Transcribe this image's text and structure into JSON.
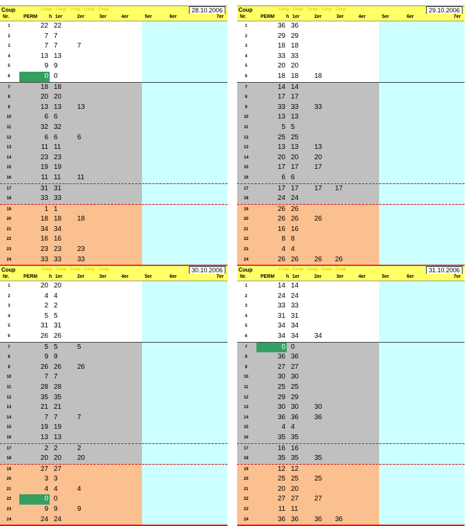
{
  "headers": {
    "coup": "Coup",
    "nr": "Nr.",
    "perm": "PERM",
    "h": "h",
    "c1": "1er",
    "c2": "2er",
    "c3": "3er",
    "c4": "4er",
    "c5": "5er",
    "c6": "6er",
    "c7": "7er"
  },
  "faint_text": "Coup · Coup · Coup · Coup · Coup",
  "panels": [
    {
      "date": "28.10.2006",
      "green_rows": [
        5
      ],
      "rows": [
        {
          "nr": "1",
          "perm": "22",
          "v": [
            "22",
            "",
            ""
          ]
        },
        {
          "nr": "2",
          "perm": "7",
          "v": [
            "7",
            "",
            ""
          ]
        },
        {
          "nr": "3",
          "perm": "7",
          "v": [
            "7",
            "7",
            ""
          ]
        },
        {
          "nr": "4",
          "perm": "13",
          "v": [
            "13",
            "",
            ""
          ]
        },
        {
          "nr": "5",
          "perm": "9",
          "v": [
            "9",
            "",
            ""
          ]
        },
        {
          "nr": "6",
          "perm": "0",
          "v": [
            "0",
            "",
            ""
          ]
        },
        {
          "nr": "7",
          "perm": "18",
          "v": [
            "18",
            "",
            ""
          ]
        },
        {
          "nr": "8",
          "perm": "20",
          "v": [
            "20",
            "",
            ""
          ]
        },
        {
          "nr": "9",
          "perm": "13",
          "v": [
            "13",
            "13",
            ""
          ]
        },
        {
          "nr": "10",
          "perm": "6",
          "v": [
            "6",
            "",
            ""
          ]
        },
        {
          "nr": "11",
          "perm": "32",
          "v": [
            "32",
            "",
            ""
          ]
        },
        {
          "nr": "12",
          "perm": "6",
          "v": [
            "6",
            "6",
            ""
          ]
        },
        {
          "nr": "13",
          "perm": "11",
          "v": [
            "11",
            "",
            ""
          ]
        },
        {
          "nr": "14",
          "perm": "23",
          "v": [
            "23",
            "",
            ""
          ]
        },
        {
          "nr": "15",
          "perm": "19",
          "v": [
            "19",
            "",
            ""
          ]
        },
        {
          "nr": "16",
          "perm": "11",
          "v": [
            "11",
            "11",
            ""
          ]
        },
        {
          "nr": "17",
          "perm": "31",
          "v": [
            "31",
            "",
            ""
          ]
        },
        {
          "nr": "18",
          "perm": "33",
          "v": [
            "33",
            "",
            ""
          ]
        },
        {
          "nr": "19",
          "perm": "1",
          "v": [
            "1",
            "",
            ""
          ]
        },
        {
          "nr": "20",
          "perm": "18",
          "v": [
            "18",
            "18",
            ""
          ]
        },
        {
          "nr": "21",
          "perm": "34",
          "v": [
            "34",
            "",
            ""
          ]
        },
        {
          "nr": "22",
          "perm": "16",
          "v": [
            "16",
            "",
            ""
          ]
        },
        {
          "nr": "23",
          "perm": "23",
          "v": [
            "23",
            "23",
            ""
          ]
        },
        {
          "nr": "24",
          "perm": "33",
          "v": [
            "33",
            "33",
            ""
          ]
        }
      ]
    },
    {
      "date": "29.10.2006",
      "green_rows": [],
      "rows": [
        {
          "nr": "1",
          "perm": "36",
          "v": [
            "36",
            "",
            ""
          ]
        },
        {
          "nr": "2",
          "perm": "29",
          "v": [
            "29",
            "",
            ""
          ]
        },
        {
          "nr": "3",
          "perm": "18",
          "v": [
            "18",
            "",
            ""
          ]
        },
        {
          "nr": "4",
          "perm": "33",
          "v": [
            "33",
            "",
            ""
          ]
        },
        {
          "nr": "5",
          "perm": "20",
          "v": [
            "20",
            "",
            ""
          ]
        },
        {
          "nr": "6",
          "perm": "18",
          "v": [
            "18",
            "18",
            ""
          ]
        },
        {
          "nr": "7",
          "perm": "14",
          "v": [
            "14",
            "",
            ""
          ]
        },
        {
          "nr": "8",
          "perm": "17",
          "v": [
            "17",
            "",
            ""
          ]
        },
        {
          "nr": "9",
          "perm": "33",
          "v": [
            "33",
            "33",
            ""
          ]
        },
        {
          "nr": "10",
          "perm": "13",
          "v": [
            "13",
            "",
            ""
          ]
        },
        {
          "nr": "11",
          "perm": "5",
          "v": [
            "5",
            "",
            ""
          ]
        },
        {
          "nr": "12",
          "perm": "25",
          "v": [
            "25",
            "",
            ""
          ]
        },
        {
          "nr": "13",
          "perm": "13",
          "v": [
            "13",
            "13",
            ""
          ]
        },
        {
          "nr": "14",
          "perm": "20",
          "v": [
            "20",
            "20",
            ""
          ]
        },
        {
          "nr": "15",
          "perm": "17",
          "v": [
            "17",
            "17",
            ""
          ]
        },
        {
          "nr": "16",
          "perm": "6",
          "v": [
            "6",
            "",
            ""
          ]
        },
        {
          "nr": "17",
          "perm": "17",
          "v": [
            "17",
            "17",
            "17"
          ]
        },
        {
          "nr": "18",
          "perm": "24",
          "v": [
            "24",
            "",
            ""
          ]
        },
        {
          "nr": "19",
          "perm": "26",
          "v": [
            "26",
            "",
            ""
          ]
        },
        {
          "nr": "20",
          "perm": "26",
          "v": [
            "26",
            "26",
            ""
          ]
        },
        {
          "nr": "21",
          "perm": "16",
          "v": [
            "16",
            "",
            ""
          ]
        },
        {
          "nr": "22",
          "perm": "8",
          "v": [
            "8",
            "",
            ""
          ]
        },
        {
          "nr": "23",
          "perm": "4",
          "v": [
            "4",
            "",
            ""
          ]
        },
        {
          "nr": "24",
          "perm": "26",
          "v": [
            "26",
            "26",
            "26"
          ]
        }
      ]
    },
    {
      "date": "30.10.2006",
      "green_rows": [
        21
      ],
      "rows": [
        {
          "nr": "1",
          "perm": "20",
          "v": [
            "20",
            "",
            ""
          ]
        },
        {
          "nr": "2",
          "perm": "4",
          "v": [
            "4",
            "",
            ""
          ]
        },
        {
          "nr": "3",
          "perm": "2",
          "v": [
            "2",
            "",
            ""
          ]
        },
        {
          "nr": "4",
          "perm": "5",
          "v": [
            "5",
            "",
            ""
          ]
        },
        {
          "nr": "5",
          "perm": "31",
          "v": [
            "31",
            "",
            ""
          ]
        },
        {
          "nr": "6",
          "perm": "26",
          "v": [
            "26",
            "",
            ""
          ]
        },
        {
          "nr": "7",
          "perm": "5",
          "v": [
            "5",
            "5",
            ""
          ]
        },
        {
          "nr": "8",
          "perm": "9",
          "v": [
            "9",
            "",
            ""
          ]
        },
        {
          "nr": "9",
          "perm": "26",
          "v": [
            "26",
            "26",
            ""
          ]
        },
        {
          "nr": "10",
          "perm": "7",
          "v": [
            "7",
            "",
            ""
          ]
        },
        {
          "nr": "11",
          "perm": "28",
          "v": [
            "28",
            "",
            ""
          ]
        },
        {
          "nr": "12",
          "perm": "35",
          "v": [
            "35",
            "",
            ""
          ]
        },
        {
          "nr": "13",
          "perm": "21",
          "v": [
            "21",
            "",
            ""
          ]
        },
        {
          "nr": "14",
          "perm": "7",
          "v": [
            "7",
            "7",
            ""
          ]
        },
        {
          "nr": "15",
          "perm": "19",
          "v": [
            "19",
            "",
            ""
          ]
        },
        {
          "nr": "16",
          "perm": "13",
          "v": [
            "13",
            "",
            ""
          ]
        },
        {
          "nr": "17",
          "perm": "2",
          "v": [
            "2",
            "2",
            ""
          ]
        },
        {
          "nr": "18",
          "perm": "20",
          "v": [
            "20",
            "20",
            ""
          ]
        },
        {
          "nr": "19",
          "perm": "27",
          "v": [
            "27",
            "",
            ""
          ]
        },
        {
          "nr": "20",
          "perm": "3",
          "v": [
            "3",
            "",
            ""
          ]
        },
        {
          "nr": "21",
          "perm": "4",
          "v": [
            "4",
            "4",
            ""
          ]
        },
        {
          "nr": "22",
          "perm": "0",
          "v": [
            "0",
            "",
            ""
          ]
        },
        {
          "nr": "23",
          "perm": "9",
          "v": [
            "9",
            "9",
            ""
          ]
        },
        {
          "nr": "24",
          "perm": "24",
          "v": [
            "24",
            "",
            ""
          ]
        }
      ]
    },
    {
      "date": "31.10.2006",
      "green_rows": [
        6
      ],
      "rows": [
        {
          "nr": "1",
          "perm": "14",
          "v": [
            "14",
            "",
            ""
          ]
        },
        {
          "nr": "2",
          "perm": "24",
          "v": [
            "24",
            "",
            ""
          ]
        },
        {
          "nr": "3",
          "perm": "33",
          "v": [
            "33",
            "",
            ""
          ]
        },
        {
          "nr": "4",
          "perm": "31",
          "v": [
            "31",
            "",
            ""
          ]
        },
        {
          "nr": "5",
          "perm": "34",
          "v": [
            "34",
            "",
            ""
          ]
        },
        {
          "nr": "6",
          "perm": "34",
          "v": [
            "34",
            "34",
            ""
          ]
        },
        {
          "nr": "7",
          "perm": "0",
          "v": [
            "0",
            "",
            ""
          ]
        },
        {
          "nr": "8",
          "perm": "36",
          "v": [
            "36",
            "",
            ""
          ]
        },
        {
          "nr": "9",
          "perm": "27",
          "v": [
            "27",
            "",
            ""
          ]
        },
        {
          "nr": "10",
          "perm": "30",
          "v": [
            "30",
            "",
            ""
          ]
        },
        {
          "nr": "11",
          "perm": "25",
          "v": [
            "25",
            "",
            ""
          ]
        },
        {
          "nr": "12",
          "perm": "29",
          "v": [
            "29",
            "",
            ""
          ]
        },
        {
          "nr": "13",
          "perm": "30",
          "v": [
            "30",
            "30",
            ""
          ]
        },
        {
          "nr": "14",
          "perm": "36",
          "v": [
            "36",
            "36",
            ""
          ]
        },
        {
          "nr": "15",
          "perm": "4",
          "v": [
            "4",
            "",
            ""
          ]
        },
        {
          "nr": "16",
          "perm": "35",
          "v": [
            "35",
            "",
            ""
          ]
        },
        {
          "nr": "17",
          "perm": "16",
          "v": [
            "16",
            "",
            ""
          ]
        },
        {
          "nr": "18",
          "perm": "35",
          "v": [
            "35",
            "35",
            ""
          ]
        },
        {
          "nr": "19",
          "perm": "12",
          "v": [
            "12",
            "",
            ""
          ]
        },
        {
          "nr": "20",
          "perm": "25",
          "v": [
            "25",
            "25",
            ""
          ]
        },
        {
          "nr": "21",
          "perm": "20",
          "v": [
            "20",
            "",
            ""
          ]
        },
        {
          "nr": "22",
          "perm": "27",
          "v": [
            "27",
            "27",
            ""
          ]
        },
        {
          "nr": "23",
          "perm": "11",
          "v": [
            "11",
            "",
            ""
          ]
        },
        {
          "nr": "24",
          "perm": "36",
          "v": [
            "36",
            "36",
            "36"
          ]
        }
      ]
    }
  ]
}
